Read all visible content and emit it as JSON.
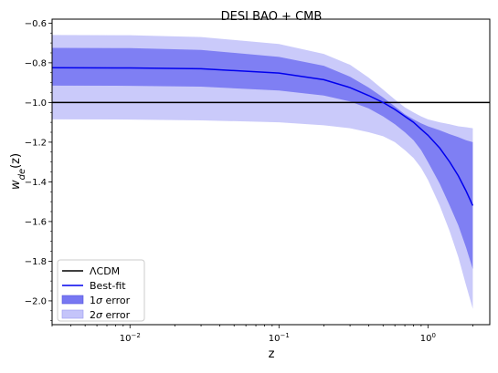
{
  "chart_data": {
    "type": "line",
    "title": "DESI BAO + CMB",
    "xlabel": "z",
    "ylabel_main": "w",
    "ylabel_sub": "de",
    "ylabel_arg": "(z)",
    "xscale": "log",
    "xlim": [
      0.003,
      2.6
    ],
    "ylim": [
      -2.12,
      -0.58
    ],
    "x_ticks": [
      {
        "value": 0.01,
        "base": "10",
        "exp": "−2"
      },
      {
        "value": 0.1,
        "base": "10",
        "exp": "−1"
      },
      {
        "value": 1,
        "base": "10",
        "exp": "0"
      }
    ],
    "y_ticks": [
      {
        "value": -0.6,
        "label": "−0.6"
      },
      {
        "value": -0.8,
        "label": "−0.8"
      },
      {
        "value": -1.0,
        "label": "−1.0"
      },
      {
        "value": -1.2,
        "label": "−1.2"
      },
      {
        "value": -1.4,
        "label": "−1.4"
      },
      {
        "value": -1.6,
        "label": "−1.6"
      },
      {
        "value": -1.8,
        "label": "−1.8"
      },
      {
        "value": -2.0,
        "label": "−2.0"
      }
    ],
    "z": [
      0.003,
      0.01,
      0.03,
      0.1,
      0.2,
      0.3,
      0.4,
      0.5,
      0.6,
      0.7,
      0.8,
      0.9,
      1.0,
      1.2,
      1.4,
      1.6,
      1.8,
      2.0
    ],
    "series": [
      {
        "name": "ΛCDM",
        "kind": "line",
        "color": "#000000",
        "values": [
          -1.0,
          -1.0,
          -1.0,
          -1.0,
          -1.0,
          -1.0,
          -1.0,
          -1.0,
          -1.0,
          -1.0,
          -1.0,
          -1.0,
          -1.0,
          -1.0,
          -1.0,
          -1.0,
          -1.0,
          -1.0
        ]
      },
      {
        "name": "Best-fit",
        "kind": "line",
        "color": "#0000ee",
        "values": [
          -0.825,
          -0.826,
          -0.83,
          -0.852,
          -0.885,
          -0.925,
          -0.965,
          -1.0,
          -1.035,
          -1.07,
          -1.1,
          -1.135,
          -1.165,
          -1.23,
          -1.3,
          -1.37,
          -1.445,
          -1.52
        ]
      },
      {
        "name": "1σ error",
        "kind": "band",
        "color": "#7777f2",
        "lower": [
          -0.915,
          -0.916,
          -0.92,
          -0.94,
          -0.965,
          -0.995,
          -1.03,
          -1.07,
          -1.11,
          -1.15,
          -1.19,
          -1.24,
          -1.3,
          -1.41,
          -1.52,
          -1.62,
          -1.73,
          -1.84
        ],
        "upper": [
          -0.725,
          -0.726,
          -0.735,
          -0.77,
          -0.815,
          -0.87,
          -0.925,
          -0.975,
          -1.02,
          -1.06,
          -1.085,
          -1.105,
          -1.12,
          -1.14,
          -1.16,
          -1.175,
          -1.19,
          -1.2
        ]
      },
      {
        "name": "2σ error",
        "kind": "band",
        "color": "#c4c4fa",
        "lower": [
          -1.085,
          -1.086,
          -1.09,
          -1.1,
          -1.115,
          -1.13,
          -1.15,
          -1.17,
          -1.2,
          -1.24,
          -1.28,
          -1.33,
          -1.39,
          -1.52,
          -1.65,
          -1.78,
          -1.92,
          -2.04
        ],
        "upper": [
          -0.66,
          -0.661,
          -0.67,
          -0.705,
          -0.755,
          -0.81,
          -0.875,
          -0.935,
          -0.985,
          -1.025,
          -1.05,
          -1.07,
          -1.085,
          -1.1,
          -1.11,
          -1.12,
          -1.125,
          -1.13
        ]
      }
    ],
    "legend": {
      "placement": "lower left",
      "entries": [
        {
          "label": "ΛCDM",
          "style": "line",
          "color": "#000000"
        },
        {
          "label": "Best-fit",
          "style": "line",
          "color": "#0000ee"
        },
        {
          "label_main": "1",
          "label_sym": "σ",
          "label_rest": " error",
          "style": "patch",
          "color": "#7777f2"
        },
        {
          "label_main": "2",
          "label_sym": "σ",
          "label_rest": " error",
          "style": "patch",
          "color": "#c4c4fa"
        }
      ]
    }
  }
}
